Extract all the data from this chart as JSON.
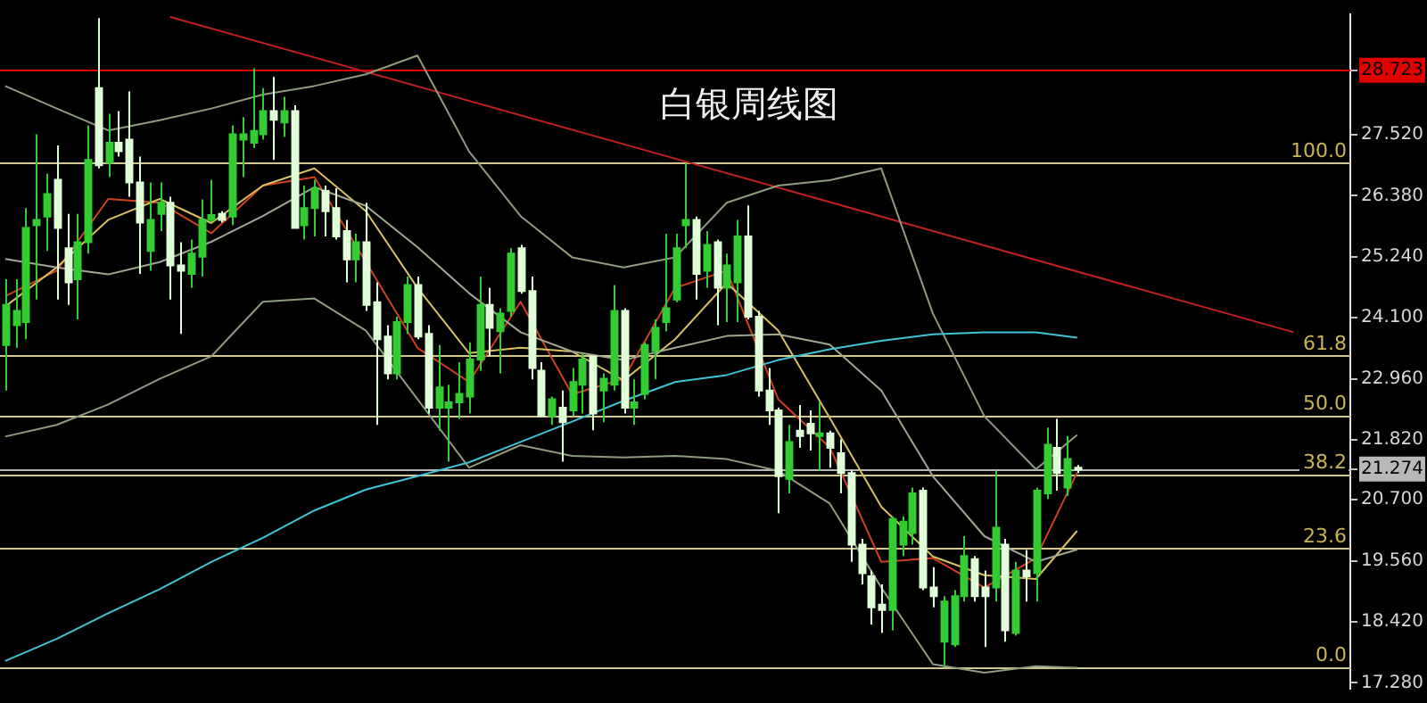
{
  "chart_data": {
    "type": "candlestick",
    "title": "白银周线图",
    "colors": [
      "#33cc33",
      "#33cc33",
      "#33cc33",
      "#33cc33",
      "#33cc33",
      "#e0ffd8",
      "#e0ffd8",
      "#33cc33",
      "#33cc33",
      "#e0ffd8",
      "#33cc33",
      "#e0ffd8",
      "#e0ffd8",
      "#e0ffd8",
      "#33cc33",
      "#33cc33",
      "#e0ffd8",
      "#e0ffd8",
      "#33cc33",
      "#33cc33",
      "#33cc33",
      "#e0ffd8",
      "#33cc33",
      "#33cc33",
      "#33cc33",
      "#33cc33",
      "#e0ffd8",
      "#33cc33",
      "#e0ffd8",
      "#33cc33",
      "#33cc33",
      "#e0ffd8",
      "#e0ffd8",
      "#e0ffd8",
      "#33cc33",
      "#e0ffd8",
      "#e0ffd8",
      "#e0ffd8",
      "#33cc33",
      "#33cc33",
      "#e0ffd8",
      "#e0ffd8",
      "#33cc33",
      "#33cc33",
      "#33cc33",
      "#33cc33",
      "#33cc33",
      "#e0ffd8",
      "#33cc33",
      "#33cc33",
      "#e0ffd8",
      "#e0ffd8",
      "#e0ffd8",
      "#33cc33",
      "#e0ffd8",
      "#33cc33",
      "#33cc33",
      "#e0ffd8",
      "#33cc33",
      "#33cc33",
      "#e0ffd8",
      "#33cc33",
      "#33cc33",
      "#33cc33",
      "#33cc33",
      "#33cc33",
      "#33cc33",
      "#e0ffd8",
      "#33cc33",
      "#e0ffd8",
      "#33cc33",
      "#33cc33",
      "#e0ffd8",
      "#e0ffd8",
      "#e0ffd8",
      "#e0ffd8",
      "#33cc33",
      "#e0ffd8",
      "#e0ffd8",
      "#33cc33",
      "#e0ffd8",
      "#e0ffd8",
      "#e0ffd8",
      "#e0ffd8",
      "#e0ffd8",
      "#e0ffd8",
      "#33cc33",
      "#33cc33",
      "#33cc33",
      "#e0ffd8",
      "#e0ffd8",
      "#33cc33",
      "#33cc33",
      "#33cc33",
      "#e0ffd8",
      "#e0ffd8",
      "#33cc33",
      "#e0ffd8",
      "#33cc33",
      "#e0ffd8",
      "#33cc33",
      "#33cc33",
      "#e0ffd8",
      "#33cc33",
      "#e0ffd8",
      null,
      null,
      null,
      null,
      null,
      null,
      null,
      null,
      null,
      null,
      null,
      null,
      null,
      null,
      null,
      null,
      null,
      null,
      null,
      null,
      null,
      null,
      null,
      null,
      null,
      null
    ],
    "categories": [
      null,
      null,
      null,
      null,
      null,
      null,
      null,
      null,
      null,
      null,
      null,
      null,
      null,
      null,
      null,
      null,
      null,
      null,
      null,
      null,
      null,
      null,
      null,
      null,
      null,
      null,
      null,
      null,
      null,
      null,
      null,
      null,
      null,
      null,
      null,
      null,
      null,
      null,
      null,
      null,
      null,
      null,
      null,
      null,
      null,
      null,
      null,
      null,
      null,
      null,
      null,
      null,
      null,
      null,
      null,
      null,
      null,
      null,
      null,
      null,
      null,
      null,
      null,
      null,
      null,
      null,
      null,
      null,
      null,
      null,
      null,
      null,
      null,
      null,
      null,
      null,
      null,
      null,
      null,
      null,
      null,
      null,
      null,
      null,
      null,
      null,
      null,
      null,
      null,
      null,
      null,
      null,
      null,
      null,
      null,
      null,
      null,
      null,
      null,
      null,
      null,
      null,
      null,
      null,
      null,
      null,
      null,
      null,
      null,
      null,
      null,
      null,
      null,
      null,
      null,
      null,
      null,
      null,
      null,
      null,
      null,
      null,
      null,
      null,
      null,
      null,
      null,
      null,
      null,
      null,
      null
    ],
    "ohlc": [
      [
        23.59,
        24.82,
        22.74,
        24.34
      ],
      [
        23.96,
        24.82,
        23.54,
        24.23
      ],
      [
        24.02,
        26.15,
        23.7,
        25.78
      ],
      [
        25.83,
        27.53,
        24.44,
        25.93
      ],
      [
        25.99,
        26.79,
        25.35,
        26.41
      ],
      [
        26.68,
        27.32,
        24.44,
        25.78
      ],
      [
        25.4,
        26.04,
        24.34,
        24.76
      ],
      [
        24.82,
        26.04,
        24.07,
        25.51
      ],
      [
        25.51,
        27.69,
        25.3,
        27.05
      ],
      [
        28.39,
        29.7,
        26.89,
        26.95
      ],
      [
        27.0,
        27.91,
        26.73,
        27.37
      ],
      [
        27.37,
        27.96,
        27.11,
        27.21
      ],
      [
        27.43,
        28.33,
        26.36,
        26.63
      ],
      [
        26.63,
        27.11,
        24.92,
        25.88
      ],
      [
        25.35,
        26.63,
        24.98,
        25.93
      ],
      [
        26.04,
        26.63,
        25.72,
        26.25
      ],
      [
        26.25,
        26.36,
        24.44,
        25.08
      ],
      [
        25.08,
        25.51,
        23.8,
        24.98
      ],
      [
        24.92,
        25.56,
        24.66,
        25.3
      ],
      [
        25.24,
        26.31,
        24.87,
        25.93
      ],
      [
        25.93,
        26.68,
        25.88,
        26.02
      ],
      [
        26.04,
        26.09,
        25.88,
        25.93
      ],
      [
        25.99,
        27.69,
        25.83,
        27.53
      ],
      [
        27.43,
        27.85,
        26.73,
        27.53
      ],
      [
        27.37,
        28.76,
        27.27,
        27.59
      ],
      [
        27.53,
        28.39,
        27.43,
        27.96
      ],
      [
        27.96,
        28.6,
        27.05,
        27.8
      ],
      [
        27.75,
        28.23,
        27.48,
        27.96
      ],
      [
        27.96,
        28.07,
        25.78,
        25.78
      ],
      [
        25.83,
        26.57,
        25.56,
        26.15
      ],
      [
        26.15,
        26.68,
        25.62,
        26.52
      ],
      [
        26.47,
        26.57,
        25.62,
        26.09
      ],
      [
        26.15,
        26.52,
        25.56,
        25.62
      ],
      [
        25.72,
        25.93,
        24.76,
        25.19
      ],
      [
        25.19,
        25.67,
        24.76,
        25.51
      ],
      [
        25.51,
        26.25,
        24.23,
        24.34
      ],
      [
        24.39,
        24.76,
        22.1,
        23.7
      ],
      [
        23.75,
        23.96,
        22.95,
        23.06
      ],
      [
        23.06,
        24.12,
        22.95,
        24.02
      ],
      [
        24.02,
        24.87,
        23.8,
        24.71
      ],
      [
        24.71,
        24.87,
        23.7,
        23.75
      ],
      [
        23.8,
        23.96,
        22.31,
        22.42
      ],
      [
        22.42,
        23.59,
        21.99,
        22.8
      ],
      [
        22.42,
        22.85,
        21.41,
        22.52
      ],
      [
        22.52,
        23.27,
        22.21,
        22.68
      ],
      [
        22.63,
        23.64,
        22.31,
        23.32
      ],
      [
        23.32,
        24.87,
        23.11,
        24.34
      ],
      [
        24.34,
        24.66,
        23.38,
        23.91
      ],
      [
        23.85,
        24.28,
        23.06,
        24.18
      ],
      [
        24.23,
        25.4,
        24.12,
        25.3
      ],
      [
        25.4,
        25.46,
        24.55,
        24.6
      ],
      [
        24.6,
        24.87,
        22.95,
        23.16
      ],
      [
        23.11,
        23.27,
        22.26,
        22.26
      ],
      [
        22.26,
        22.63,
        22.1,
        22.58
      ],
      [
        22.42,
        22.74,
        21.41,
        22.15
      ],
      [
        22.37,
        23.16,
        22.26,
        22.9
      ],
      [
        22.85,
        23.43,
        22.31,
        23.32
      ],
      [
        23.38,
        23.38,
        22.0,
        22.31
      ],
      [
        22.74,
        23.06,
        22.15,
        22.96
      ],
      [
        22.85,
        24.71,
        22.74,
        24.23
      ],
      [
        24.23,
        24.28,
        22.31,
        22.42
      ],
      [
        22.42,
        22.95,
        22.1,
        22.52
      ],
      [
        22.68,
        23.64,
        22.58,
        23.59
      ],
      [
        23.48,
        24.07,
        22.95,
        23.91
      ],
      [
        24.02,
        25.67,
        23.85,
        24.28
      ],
      [
        24.44,
        25.67,
        24.39,
        25.4
      ],
      [
        25.83,
        26.99,
        25.4,
        25.93
      ],
      [
        25.93,
        25.99,
        24.44,
        24.92
      ],
      [
        24.98,
        25.72,
        24.66,
        25.46
      ],
      [
        25.51,
        25.56,
        23.96,
        24.66
      ],
      [
        24.66,
        25.3,
        24.02,
        25.08
      ],
      [
        24.76,
        25.93,
        24.02,
        25.62
      ],
      [
        25.62,
        26.2,
        24.07,
        24.12
      ],
      [
        24.12,
        24.23,
        22.63,
        22.74
      ],
      [
        22.74,
        23.16,
        22.1,
        22.37
      ],
      [
        22.37,
        22.42,
        20.45,
        21.14
      ],
      [
        21.09,
        22.1,
        20.82,
        21.78
      ],
      [
        21.99,
        22.47,
        21.67,
        21.89
      ],
      [
        22.12,
        22.37,
        21.62,
        21.94
      ],
      [
        21.89,
        22.53,
        21.25,
        21.94
      ],
      [
        21.94,
        21.99,
        21.3,
        21.67
      ],
      [
        21.57,
        21.83,
        20.82,
        21.2
      ],
      [
        21.2,
        21.25,
        19.54,
        19.86
      ],
      [
        19.86,
        19.97,
        19.12,
        19.33
      ],
      [
        19.27,
        19.38,
        18.37,
        18.69
      ],
      [
        18.74,
        19.12,
        18.21,
        18.64
      ],
      [
        18.64,
        20.39,
        18.26,
        20.34
      ],
      [
        19.86,
        20.39,
        19.65,
        20.29
      ],
      [
        20.08,
        20.93,
        19.86,
        20.82
      ],
      [
        20.87,
        20.93,
        19.01,
        19.06
      ],
      [
        19.06,
        19.44,
        18.69,
        18.9
      ],
      [
        18.05,
        18.9,
        17.57,
        18.8
      ],
      [
        18.0,
        19.01,
        17.95,
        18.9
      ],
      [
        18.9,
        20.02,
        18.8,
        19.65
      ],
      [
        19.59,
        19.65,
        18.8,
        18.9
      ],
      [
        19.06,
        19.38,
        17.95,
        18.9
      ],
      [
        19.06,
        21.25,
        18.8,
        20.18
      ],
      [
        19.86,
        19.97,
        18.05,
        18.26
      ],
      [
        18.21,
        19.54,
        18.16,
        19.38
      ],
      [
        19.38,
        19.76,
        18.8,
        19.27
      ],
      [
        19.33,
        20.93,
        18.8,
        20.87
      ],
      [
        20.82,
        22.05,
        20.71,
        21.73
      ],
      [
        21.67,
        22.21,
        20.87,
        21.2
      ],
      [
        20.93,
        21.89,
        20.77,
        21.46
      ],
      [
        21.3,
        21.35,
        21.2,
        21.274
      ],
      null,
      null,
      null,
      null,
      null,
      null,
      null,
      null,
      null,
      null,
      null,
      null,
      null,
      null,
      null,
      null,
      null,
      null,
      null,
      null,
      null,
      null,
      null,
      null,
      null,
      null
    ],
    "series": [
      {
        "type": "line",
        "color": "#40c4d8",
        "values": [
          17.69,
          null,
          null,
          null,
          null,
          18.1,
          null,
          null,
          null,
          null,
          18.58,
          null,
          null,
          null,
          null,
          19.03,
          null,
          null,
          null,
          null,
          19.54,
          null,
          null,
          null,
          null,
          19.99,
          null,
          null,
          null,
          null,
          20.5,
          null,
          null,
          null,
          null,
          20.89,
          null,
          null,
          null,
          null,
          21.14,
          null,
          null,
          null,
          null,
          21.4,
          null,
          null,
          null,
          null,
          21.78,
          null,
          null,
          null,
          null,
          22.16,
          null,
          null,
          null,
          null,
          22.55,
          null,
          null,
          null,
          null,
          22.9,
          null,
          null,
          null,
          null,
          23.03,
          null,
          null,
          null,
          null,
          23.31,
          null,
          null,
          null,
          null,
          23.51,
          null,
          null,
          null,
          null,
          23.67,
          null,
          null,
          null,
          null,
          23.79,
          null,
          null,
          null,
          null,
          23.83,
          null,
          null,
          null,
          null,
          23.83,
          null,
          null,
          null,
          23.73,
          null,
          null,
          null,
          null,
          null,
          null,
          null,
          null,
          null,
          null,
          null,
          null,
          null,
          null,
          null,
          null,
          null,
          null,
          null,
          null,
          null,
          null,
          null,
          null,
          null,
          null
        ]
      },
      {
        "type": "line",
        "color": "#8e9c80",
        "values": [
          28.43,
          null,
          null,
          null,
          null,
          28.01,
          null,
          null,
          null,
          null,
          27.6,
          null,
          null,
          null,
          null,
          27.79,
          null,
          null,
          null,
          null,
          28.01,
          null,
          null,
          null,
          null,
          28.27,
          null,
          null,
          null,
          null,
          28.43,
          null,
          null,
          null,
          null,
          28.65,
          null,
          null,
          null,
          null,
          29.0,
          null,
          null,
          null,
          null,
          27.21,
          null,
          null,
          null,
          null,
          26.0,
          null,
          null,
          null,
          null,
          25.23,
          null,
          null,
          null,
          null,
          25.04,
          null,
          null,
          null,
          null,
          25.23,
          null,
          null,
          null,
          null,
          26.25,
          null,
          null,
          null,
          null,
          26.57,
          null,
          null,
          null,
          null,
          26.67,
          null,
          null,
          null,
          null,
          26.89,
          null,
          null,
          null,
          null,
          24.18,
          null,
          null,
          null,
          null,
          22.26,
          null,
          null,
          null,
          null,
          21.27,
          null,
          null,
          null,
          21.91,
          null,
          null,
          null,
          null,
          null,
          null,
          null,
          null,
          null,
          null,
          null,
          null,
          null,
          null,
          null,
          null,
          null,
          null,
          null,
          null,
          null,
          null,
          null,
          null,
          null,
          null
        ]
      },
      {
        "type": "line",
        "color": "#8e9c80",
        "values": [
          21.88,
          null,
          null,
          null,
          null,
          22.1,
          null,
          null,
          null,
          null,
          22.48,
          null,
          null,
          null,
          null,
          22.96,
          null,
          null,
          null,
          null,
          23.38,
          null,
          null,
          null,
          null,
          24.4,
          null,
          null,
          null,
          null,
          24.46,
          null,
          null,
          null,
          null,
          23.86,
          null,
          null,
          null,
          null,
          22.58,
          null,
          null,
          null,
          null,
          21.3,
          null,
          null,
          null,
          null,
          21.72,
          null,
          null,
          null,
          null,
          21.52,
          null,
          null,
          null,
          null,
          21.49,
          null,
          null,
          null,
          null,
          21.52,
          null,
          null,
          null,
          null,
          21.46,
          null,
          null,
          null,
          null,
          21.24,
          null,
          null,
          null,
          null,
          20.63,
          null,
          null,
          null,
          null,
          19.06,
          null,
          null,
          null,
          null,
          17.63,
          null,
          null,
          null,
          null,
          17.47,
          null,
          null,
          null,
          null,
          17.59,
          null,
          null,
          null,
          17.56,
          null,
          null,
          null,
          null,
          null,
          null,
          null,
          null,
          null,
          null,
          null,
          null,
          null,
          null,
          null,
          null,
          null,
          null,
          null,
          null,
          null,
          null,
          null,
          null,
          null,
          null
        ]
      },
      {
        "type": "line",
        "color": "#a0a890",
        "values": [
          25.2,
          null,
          null,
          null,
          null,
          25.04,
          null,
          null,
          null,
          null,
          24.91,
          null,
          null,
          null,
          null,
          25.14,
          null,
          null,
          null,
          null,
          25.52,
          null,
          null,
          null,
          null,
          26.0,
          null,
          null,
          null,
          null,
          26.54,
          null,
          null,
          null,
          null,
          26.19,
          null,
          null,
          null,
          null,
          25.42,
          null,
          null,
          null,
          null,
          24.56,
          null,
          null,
          null,
          null,
          23.83,
          null,
          null,
          null,
          null,
          23.47,
          null,
          null,
          null,
          null,
          23.31,
          null,
          null,
          null,
          null,
          23.54,
          null,
          null,
          null,
          null,
          23.76,
          null,
          null,
          null,
          null,
          23.79,
          null,
          null,
          null,
          null,
          23.6,
          null,
          null,
          null,
          null,
          22.74,
          null,
          null,
          null,
          null,
          21.14,
          null,
          null,
          null,
          null,
          20.02,
          null,
          null,
          null,
          null,
          19.54,
          null,
          null,
          null,
          19.77,
          null,
          null,
          null,
          null,
          null,
          null,
          null,
          null,
          null,
          null,
          null,
          null,
          null,
          null,
          null,
          null,
          null,
          null,
          null,
          null,
          null,
          null,
          null,
          null,
          null,
          null
        ]
      },
      {
        "type": "line",
        "color": "#d8c060",
        "values": [
          24.31,
          null,
          null,
          null,
          null,
          25.04,
          null,
          null,
          null,
          null,
          25.93,
          null,
          null,
          null,
          null,
          26.32,
          null,
          null,
          null,
          null,
          25.87,
          null,
          null,
          null,
          null,
          26.57,
          null,
          null,
          null,
          null,
          26.89,
          null,
          null,
          null,
          null,
          26.09,
          null,
          null,
          null,
          null,
          24.66,
          null,
          null,
          null,
          null,
          23.44,
          null,
          null,
          null,
          null,
          23.54,
          null,
          null,
          null,
          null,
          23.47,
          null,
          null,
          null,
          null,
          22.93,
          null,
          null,
          null,
          null,
          23.7,
          null,
          null,
          null,
          null,
          24.75,
          null,
          null,
          null,
          null,
          23.86,
          null,
          null,
          null,
          null,
          22.23,
          null,
          null,
          null,
          null,
          20.57,
          null,
          null,
          null,
          null,
          19.64,
          null,
          null,
          null,
          null,
          19.29,
          null,
          null,
          null,
          null,
          19.22,
          null,
          null,
          null,
          20.12,
          null,
          null,
          null,
          null,
          null,
          null,
          null,
          null,
          null,
          null,
          null,
          null,
          null,
          null,
          null,
          null,
          null,
          null,
          null,
          null,
          null,
          null,
          null,
          null,
          null,
          null
        ]
      },
      {
        "type": "line",
        "color": "#d04020",
        "values": [
          24.5,
          null,
          null,
          null,
          null,
          24.98,
          null,
          null,
          null,
          null,
          26.32,
          null,
          null,
          null,
          null,
          26.25,
          null,
          null,
          null,
          null,
          25.68,
          null,
          null,
          null,
          null,
          26.57,
          null,
          null,
          null,
          null,
          26.73,
          null,
          null,
          null,
          null,
          25.14,
          null,
          null,
          null,
          null,
          23.54,
          null,
          null,
          null,
          null,
          22.9,
          null,
          null,
          null,
          null,
          24.4,
          null,
          null,
          null,
          null,
          22.67,
          null,
          null,
          null,
          null,
          22.96,
          null,
          null,
          null,
          null,
          24.66,
          null,
          null,
          null,
          null,
          24.98,
          null,
          null,
          null,
          null,
          22.58,
          null,
          null,
          null,
          null,
          21.68,
          null,
          null,
          null,
          null,
          19.54,
          null,
          null,
          null,
          null,
          19.61,
          null,
          null,
          null,
          null,
          19.06,
          null,
          null,
          null,
          null,
          19.61,
          null,
          null,
          null,
          21.21,
          null,
          null,
          null,
          null,
          null,
          null,
          null,
          null,
          null,
          null,
          null,
          null,
          null,
          null,
          null,
          null,
          null,
          null,
          null,
          null,
          null,
          null,
          null,
          null,
          null,
          null
        ]
      },
      {
        "type": "line",
        "color": "#c02020",
        "values": [
          null,
          null,
          null,
          null,
          null,
          null,
          null,
          null,
          null,
          null,
          null,
          null,
          null,
          null,
          null,
          null,
          29.72,
          null,
          null,
          null,
          null,
          null,
          null,
          null,
          null,
          null,
          null,
          null,
          null,
          null,
          null,
          null,
          null,
          null,
          null,
          null,
          null,
          null,
          null,
          null,
          null,
          null,
          null,
          null,
          null,
          null,
          null,
          null,
          null,
          null,
          null,
          null,
          null,
          null,
          null,
          null,
          null,
          null,
          null,
          null,
          null,
          null,
          null,
          null,
          null,
          null,
          null,
          null,
          null,
          null,
          null,
          null,
          null,
          null,
          null,
          null,
          null,
          null,
          null,
          null,
          null,
          null,
          null,
          null,
          null,
          null,
          null,
          null,
          null,
          null,
          null,
          null,
          null,
          null,
          null,
          null,
          null,
          null,
          null,
          null,
          null,
          null,
          null,
          null,
          null,
          null,
          null,
          null,
          null,
          null,
          null,
          null,
          null,
          null,
          null,
          null,
          null,
          null,
          null,
          null,
          null,
          null,
          null,
          null,
          null,
          23.83,
          null,
          null,
          null,
          null,
          null
        ]
      }
    ],
    "ylim": [
      17.17,
      29.77
    ],
    "yticks": [
      {
        "value": 17.28,
        "label": "17.280"
      },
      {
        "value": 18.42,
        "label": "18.420"
      },
      {
        "value": 19.56,
        "label": "19.560"
      },
      {
        "value": 20.7,
        "label": "20.700"
      },
      21.274,
      {
        "value": 21.82,
        "label": "21.820"
      },
      {
        "value": 22.96,
        "label": "22.960"
      },
      {
        "value": 24.1,
        "label": "24.100"
      },
      {
        "value": 25.24,
        "label": "25.240"
      },
      {
        "value": 26.38,
        "label": "26.380"
      },
      {
        "value": 27.52,
        "label": "27.520"
      },
      28.723
    ],
    "ref_lines": [
      {
        "axis": "y",
        "value": 28.723,
        "color": "#e00000"
      },
      {
        "axis": "y",
        "value": 21.274,
        "color": "#b8b8b8"
      },
      {
        "axis": "y",
        "value": 26.99,
        "color": "#d0c890"
      },
      {
        "axis": "y",
        "value": 23.39,
        "color": "#d0c890"
      },
      {
        "axis": "y",
        "value": 22.27,
        "color": "#d0c890"
      },
      {
        "axis": "y",
        "value": 21.17,
        "color": "#d0c890"
      },
      {
        "axis": "y",
        "value": 19.79,
        "color": "#d0c890"
      },
      {
        "axis": "y",
        "value": 17.56,
        "color": "#d0c890"
      }
    ],
    "annotations": [
      {
        "text": "100.0",
        "y": 26.99
      },
      {
        "text": "61.8",
        "y": 23.39
      },
      {
        "text": "50.0",
        "y": 22.27
      },
      {
        "text": "38.2",
        "y": 21.17
      },
      {
        "text": "23.6",
        "y": 19.79
      },
      {
        "text": "0.0",
        "y": 17.56
      }
    ]
  }
}
